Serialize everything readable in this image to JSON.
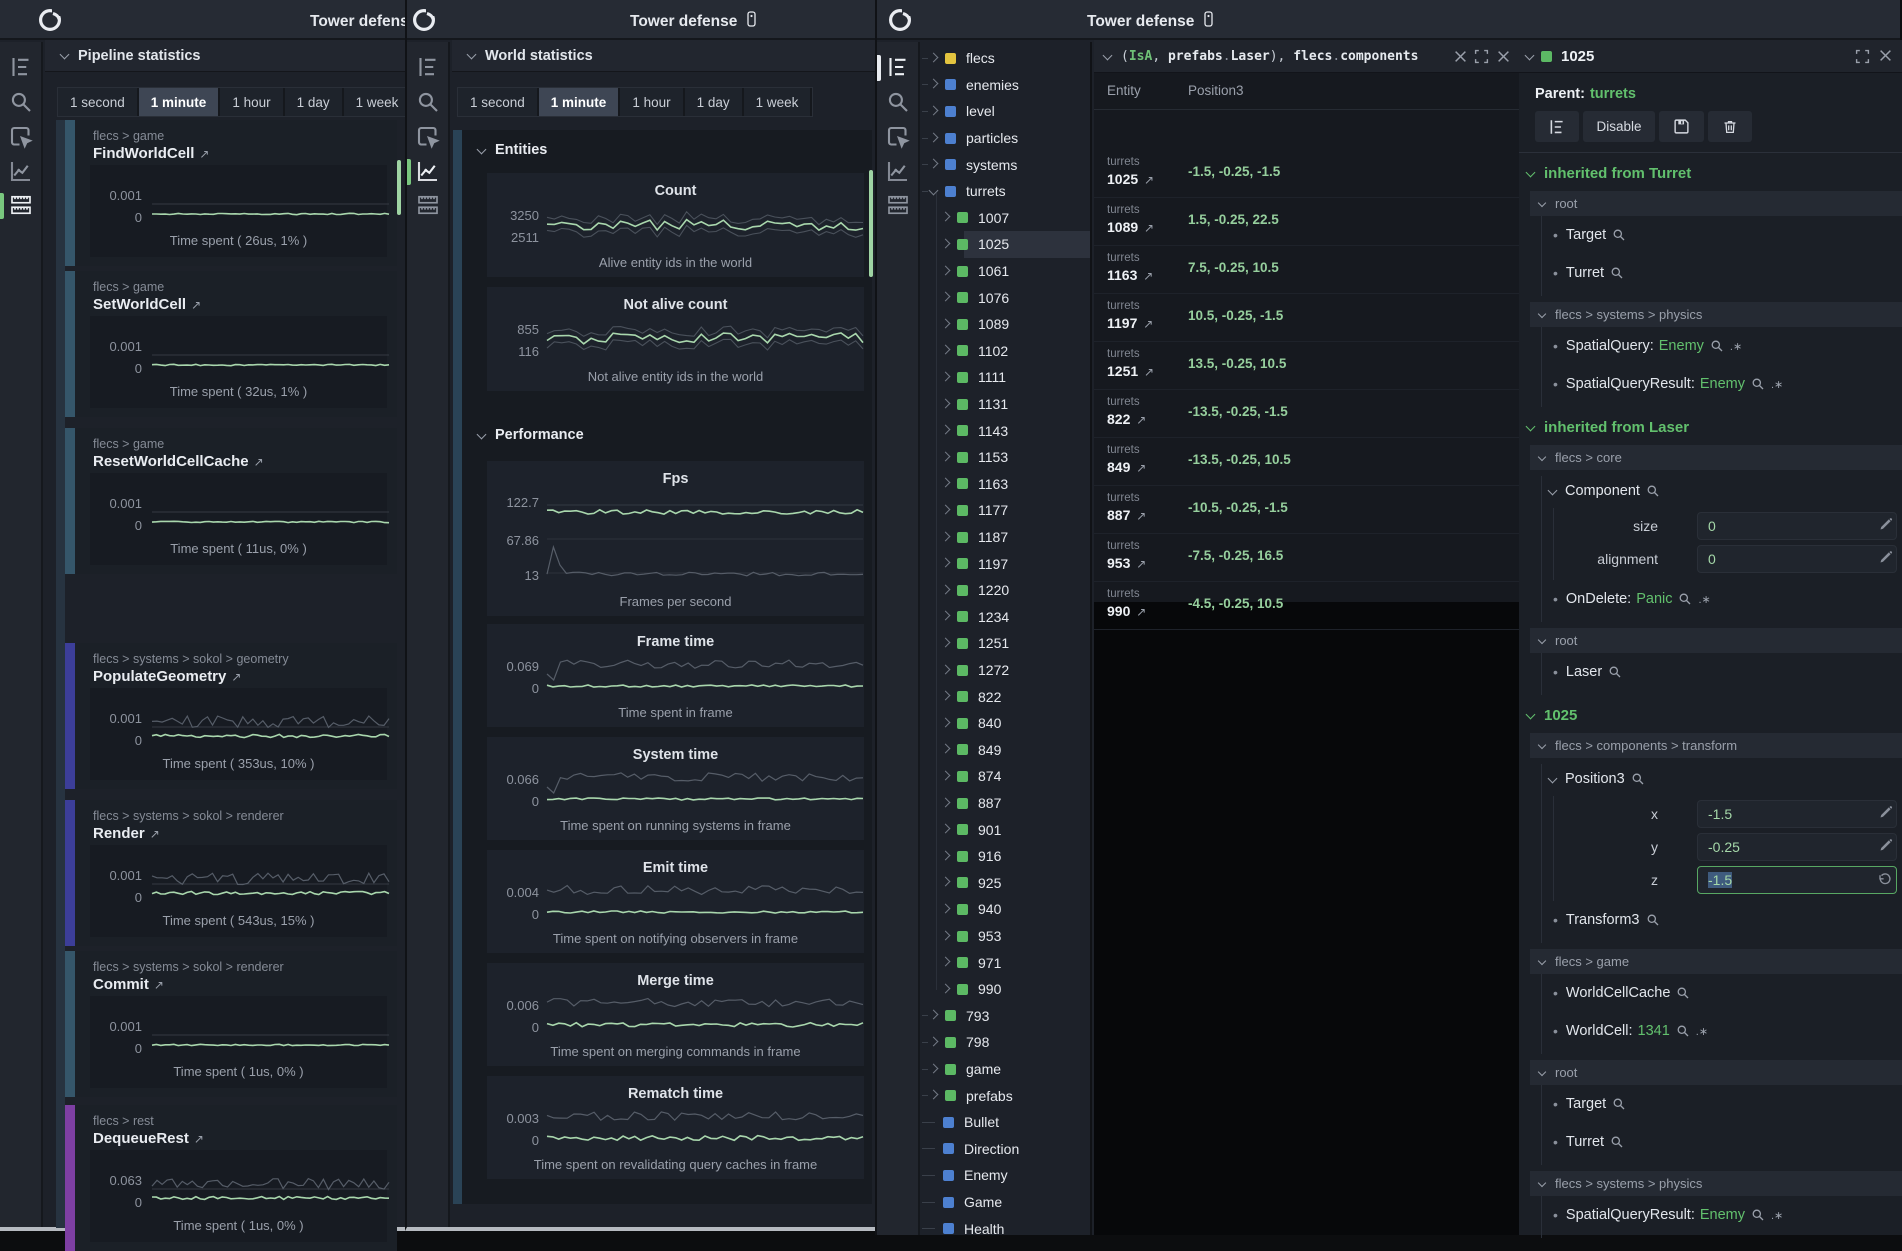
{
  "app": {
    "title": "Tower defense"
  },
  "colors": {
    "green": "#62c06d",
    "line_green": "#a9d7ad",
    "line_gray": "#565d68",
    "teal_accent": "#35566a",
    "indigo_accent": "#3c3e99",
    "purple_accent": "#7e3fa3",
    "block_teal": "#2a4356",
    "sq_yellow": "#e3c43f",
    "sq_blue": "#4d80d0",
    "sq_green": "#5cb964"
  },
  "pipeline": {
    "panel_title": "Pipeline statistics",
    "tabs": [
      "1 second",
      "1 minute",
      "1 hour",
      "1 day",
      "1 week"
    ],
    "active_tab": "1 minute",
    "cards": [
      {
        "breadcrumb": "flecs > game",
        "title": "FindWorldCell",
        "y_max": "0.001",
        "y_min": "0",
        "caption": "Time spent ( 26us, 1% )",
        "accent": "teal",
        "style": "flat",
        "seed": 11
      },
      {
        "breadcrumb": "flecs > game",
        "title": "SetWorldCell",
        "y_max": "0.001",
        "y_min": "0",
        "caption": "Time spent ( 32us, 1% )",
        "accent": "teal",
        "style": "flat",
        "seed": 12
      },
      {
        "breadcrumb": "flecs > game",
        "title": "ResetWorldCellCache",
        "y_max": "0.001",
        "y_min": "0",
        "caption": "Time spent ( 11us, 0% )",
        "accent": "teal",
        "style": "flat",
        "seed": 13
      },
      {
        "breadcrumb": "flecs > systems > sokol > geometry",
        "title": "PopulateGeometry",
        "y_max": "0.001",
        "y_min": "0",
        "caption": "Time spent ( 353us, 10% )",
        "accent": "indigo",
        "style": "noisy",
        "seed": 14
      },
      {
        "breadcrumb": "flecs > systems > sokol > renderer",
        "title": "Render",
        "y_max": "0.001",
        "y_min": "0",
        "caption": "Time spent ( 543us, 15% )",
        "accent": "indigo",
        "style": "noisy",
        "seed": 15
      },
      {
        "breadcrumb": "flecs > systems > sokol > renderer",
        "title": "Commit",
        "y_max": "0.001",
        "y_min": "0",
        "caption": "Time spent ( 1us, 0% )",
        "accent": "teal",
        "style": "flat",
        "seed": 16
      },
      {
        "breadcrumb": "flecs > rest",
        "title": "DequeueRest",
        "y_max": "0.063",
        "y_min": "0",
        "caption": "Time spent ( 1us, 0% )",
        "accent": "purple",
        "style": "noisy",
        "seed": 17
      }
    ]
  },
  "world": {
    "panel_title": "World statistics",
    "tabs": [
      "1 second",
      "1 minute",
      "1 hour",
      "1 day",
      "1 week"
    ],
    "active_tab": "1 minute",
    "sections": [
      {
        "title": "Entities",
        "cards": [
          {
            "title": "Count",
            "labels": [
              "3250",
              "2511"
            ],
            "caption": "Alive entity ids in the world",
            "style": "band",
            "seed": 21
          },
          {
            "title": "Not alive count",
            "labels": [
              "855",
              "116"
            ],
            "caption": "Not alive entity ids in the world",
            "style": "band",
            "seed": 22
          }
        ]
      },
      {
        "title": "Performance",
        "cards": [
          {
            "title": "Fps",
            "labels": [
              "122.7",
              "67.86",
              "13"
            ],
            "caption": "Frames per second",
            "style": "fps",
            "seed": 23
          },
          {
            "title": "Frame time",
            "labels": [
              "0.069",
              "0"
            ],
            "caption": "Time spent in frame",
            "style": "duodip",
            "seed": 24
          },
          {
            "title": "System time",
            "labels": [
              "0.066",
              "0"
            ],
            "caption": "Time spent on running systems in frame",
            "style": "duodip",
            "seed": 25
          },
          {
            "title": "Emit time",
            "labels": [
              "0.004",
              "0"
            ],
            "caption": "Time spent on notifying observers in frame",
            "style": "duo",
            "seed": 26
          },
          {
            "title": "Merge time",
            "labels": [
              "0.006",
              "0"
            ],
            "caption": "Time spent on merging commands in frame",
            "style": "duo2",
            "seed": 27
          },
          {
            "title": "Rematch time",
            "labels": [
              "0.003",
              "0"
            ],
            "caption": "Time spent on revalidating query caches in frame",
            "style": "duo2",
            "seed": 28
          }
        ]
      }
    ]
  },
  "tree": {
    "items": [
      {
        "label": "flecs",
        "color": "yellow",
        "depth": 0,
        "kind": "branch"
      },
      {
        "label": "enemies",
        "color": "blue",
        "depth": 0,
        "kind": "branch"
      },
      {
        "label": "level",
        "color": "blue",
        "depth": 0,
        "kind": "branch"
      },
      {
        "label": "particles",
        "color": "blue",
        "depth": 0,
        "kind": "branch"
      },
      {
        "label": "systems",
        "color": "blue",
        "depth": 0,
        "kind": "branch"
      },
      {
        "label": "turrets",
        "color": "blue",
        "depth": 0,
        "kind": "open"
      },
      {
        "label": "1007",
        "color": "green",
        "depth": 1,
        "kind": "branch"
      },
      {
        "label": "1025",
        "color": "green",
        "depth": 1,
        "kind": "branch",
        "selected": true
      },
      {
        "label": "1061",
        "color": "green",
        "depth": 1,
        "kind": "branch"
      },
      {
        "label": "1076",
        "color": "green",
        "depth": 1,
        "kind": "branch"
      },
      {
        "label": "1089",
        "color": "green",
        "depth": 1,
        "kind": "branch"
      },
      {
        "label": "1102",
        "color": "green",
        "depth": 1,
        "kind": "branch"
      },
      {
        "label": "1111",
        "color": "green",
        "depth": 1,
        "kind": "branch"
      },
      {
        "label": "1131",
        "color": "green",
        "depth": 1,
        "kind": "branch"
      },
      {
        "label": "1143",
        "color": "green",
        "depth": 1,
        "kind": "branch"
      },
      {
        "label": "1153",
        "color": "green",
        "depth": 1,
        "kind": "branch"
      },
      {
        "label": "1163",
        "color": "green",
        "depth": 1,
        "kind": "branch"
      },
      {
        "label": "1177",
        "color": "green",
        "depth": 1,
        "kind": "branch"
      },
      {
        "label": "1187",
        "color": "green",
        "depth": 1,
        "kind": "branch"
      },
      {
        "label": "1197",
        "color": "green",
        "depth": 1,
        "kind": "branch"
      },
      {
        "label": "1220",
        "color": "green",
        "depth": 1,
        "kind": "branch"
      },
      {
        "label": "1234",
        "color": "green",
        "depth": 1,
        "kind": "branch"
      },
      {
        "label": "1251",
        "color": "green",
        "depth": 1,
        "kind": "branch"
      },
      {
        "label": "1272",
        "color": "green",
        "depth": 1,
        "kind": "branch"
      },
      {
        "label": "822",
        "color": "green",
        "depth": 1,
        "kind": "branch"
      },
      {
        "label": "840",
        "color": "green",
        "depth": 1,
        "kind": "branch"
      },
      {
        "label": "849",
        "color": "green",
        "depth": 1,
        "kind": "branch"
      },
      {
        "label": "874",
        "color": "green",
        "depth": 1,
        "kind": "branch"
      },
      {
        "label": "887",
        "color": "green",
        "depth": 1,
        "kind": "branch"
      },
      {
        "label": "901",
        "color": "green",
        "depth": 1,
        "kind": "branch"
      },
      {
        "label": "916",
        "color": "green",
        "depth": 1,
        "kind": "branch"
      },
      {
        "label": "925",
        "color": "green",
        "depth": 1,
        "kind": "branch"
      },
      {
        "label": "940",
        "color": "green",
        "depth": 1,
        "kind": "branch"
      },
      {
        "label": "953",
        "color": "green",
        "depth": 1,
        "kind": "branch"
      },
      {
        "label": "971",
        "color": "green",
        "depth": 1,
        "kind": "branch"
      },
      {
        "label": "990",
        "color": "green",
        "depth": 1,
        "kind": "branch"
      },
      {
        "label": "793",
        "color": "green",
        "depth": 0,
        "kind": "branch"
      },
      {
        "label": "798",
        "color": "green",
        "depth": 0,
        "kind": "branch"
      },
      {
        "label": "game",
        "color": "green",
        "depth": 0,
        "kind": "branch"
      },
      {
        "label": "prefabs",
        "color": "green",
        "depth": 0,
        "kind": "branch"
      },
      {
        "label": "Bullet",
        "color": "blue",
        "depth": 0,
        "kind": "leaf"
      },
      {
        "label": "Direction",
        "color": "blue",
        "depth": 0,
        "kind": "leaf"
      },
      {
        "label": "Enemy",
        "color": "blue",
        "depth": 0,
        "kind": "leaf"
      },
      {
        "label": "Game",
        "color": "blue",
        "depth": 0,
        "kind": "leaf"
      },
      {
        "label": "Health",
        "color": "blue",
        "depth": 0,
        "kind": "leaf"
      }
    ]
  },
  "query": {
    "expr_parts": [
      {
        "text": "(",
        "c": "p"
      },
      {
        "text": "IsA",
        "c": "g"
      },
      {
        "text": ", ",
        "c": "p"
      },
      {
        "text": "prefabs",
        "c": "w"
      },
      {
        "text": ".",
        "c": "d"
      },
      {
        "text": "Laser",
        "c": "w"
      },
      {
        "text": "), ",
        "c": "p"
      },
      {
        "text": "flecs",
        "c": "w"
      },
      {
        "text": ".",
        "c": "d"
      },
      {
        "text": "components",
        "c": "w"
      }
    ],
    "columns": [
      "Entity",
      "Position3"
    ],
    "rows": [
      {
        "parent": "turrets",
        "entity": "1025",
        "position": "-1.5, -0.25, -1.5"
      },
      {
        "parent": "turrets",
        "entity": "1089",
        "position": "1.5, -0.25, 22.5"
      },
      {
        "parent": "turrets",
        "entity": "1163",
        "position": "7.5, -0.25, 10.5"
      },
      {
        "parent": "turrets",
        "entity": "1197",
        "position": "10.5, -0.25, -1.5"
      },
      {
        "parent": "turrets",
        "entity": "1251",
        "position": "13.5, -0.25, 10.5"
      },
      {
        "parent": "turrets",
        "entity": "822",
        "position": "-13.5, -0.25, -1.5"
      },
      {
        "parent": "turrets",
        "entity": "849",
        "position": "-13.5, -0.25, 10.5"
      },
      {
        "parent": "turrets",
        "entity": "887",
        "position": "-10.5, -0.25, -1.5"
      },
      {
        "parent": "turrets",
        "entity": "953",
        "position": "-7.5, -0.25, 16.5"
      },
      {
        "parent": "turrets",
        "entity": "990",
        "position": "-4.5, -0.25, 10.5"
      }
    ]
  },
  "inspector": {
    "entity": "1025",
    "parent_label": "Parent:",
    "parent": "turrets",
    "disable_label": "Disable",
    "blocks": [
      {
        "t": "greenh",
        "text": "inherited from Turret"
      },
      {
        "t": "path",
        "text": "root"
      },
      {
        "t": "item",
        "name": "Target"
      },
      {
        "t": "item",
        "name": "Turret"
      },
      {
        "t": "path",
        "text": "flecs > systems > physics"
      },
      {
        "t": "item",
        "name": "SpatialQuery:",
        "value": "Enemy",
        "star": true
      },
      {
        "t": "item",
        "name": "SpatialQueryResult:",
        "value": "Enemy",
        "star": true
      },
      {
        "t": "greenh",
        "text": "inherited from Laser"
      },
      {
        "t": "path",
        "text": "flecs > core"
      },
      {
        "t": "expand",
        "name": "Component"
      },
      {
        "t": "field",
        "label": "size",
        "value": "0"
      },
      {
        "t": "field",
        "label": "alignment",
        "value": "0"
      },
      {
        "t": "item",
        "name": "OnDelete:",
        "value": "Panic",
        "star": true
      },
      {
        "t": "path",
        "text": "root"
      },
      {
        "t": "item",
        "name": "Laser"
      },
      {
        "t": "greenh",
        "text": "1025"
      },
      {
        "t": "path",
        "text": "flecs > components > transform"
      },
      {
        "t": "expand",
        "name": "Position3"
      },
      {
        "t": "field",
        "label": "x",
        "value": "-1.5"
      },
      {
        "t": "field",
        "label": "y",
        "value": "-0.25"
      },
      {
        "t": "field",
        "label": "z",
        "value": "-1.5",
        "focused": true
      },
      {
        "t": "item",
        "name": "Transform3"
      },
      {
        "t": "path",
        "text": "flecs > game"
      },
      {
        "t": "item",
        "name": "WorldCellCache"
      },
      {
        "t": "item",
        "name": "WorldCell:",
        "value": "1341",
        "star": true
      },
      {
        "t": "path",
        "text": "root"
      },
      {
        "t": "item",
        "name": "Target"
      },
      {
        "t": "item",
        "name": "Turret"
      },
      {
        "t": "path",
        "text": "flecs > systems > physics"
      },
      {
        "t": "item",
        "name": "SpatialQueryResult:",
        "value": "Enemy",
        "star": true
      }
    ]
  }
}
